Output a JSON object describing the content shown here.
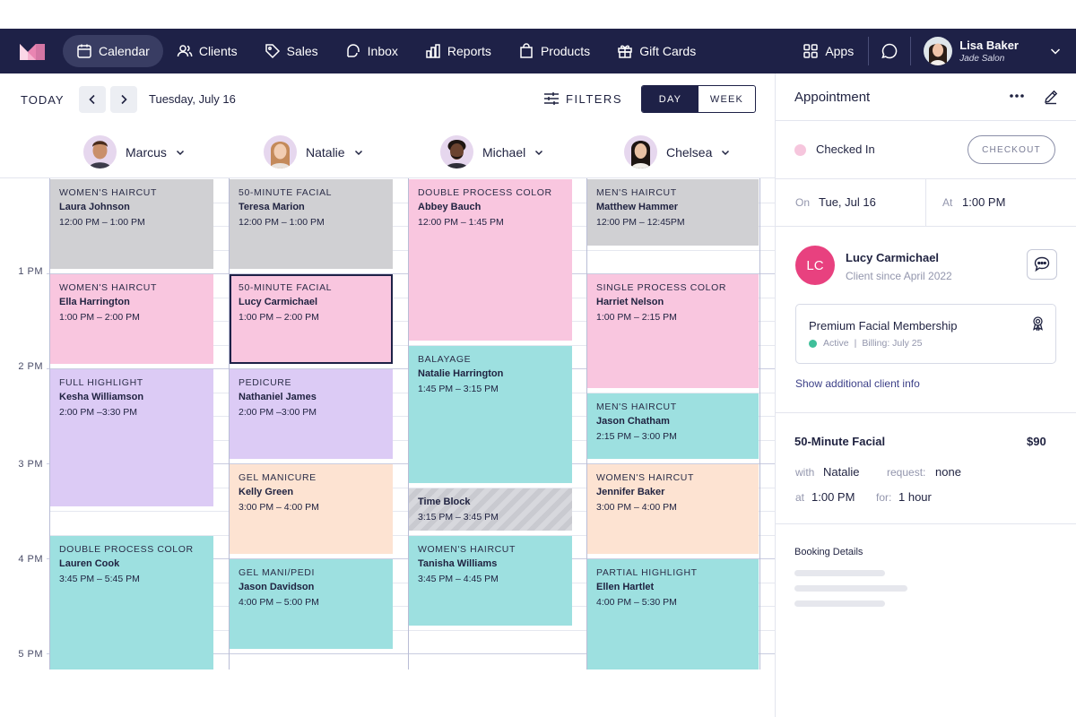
{
  "nav": {
    "items": [
      {
        "label": "Calendar",
        "icon": "calendar-icon",
        "active": true
      },
      {
        "label": "Clients",
        "icon": "clients-icon",
        "active": false
      },
      {
        "label": "Sales",
        "icon": "tag-icon",
        "active": false
      },
      {
        "label": "Inbox",
        "icon": "inbox-icon",
        "active": false
      },
      {
        "label": "Reports",
        "icon": "bar-chart-icon",
        "active": false
      },
      {
        "label": "Products",
        "icon": "shopping-bag-icon",
        "active": false
      },
      {
        "label": "Gift Cards",
        "icon": "gift-icon",
        "active": false
      }
    ],
    "apps_label": "Apps",
    "user_name": "Lisa Baker",
    "user_salon": "Jade Salon"
  },
  "toolbar": {
    "today_label": "TODAY",
    "date": "Tuesday, July 16",
    "filters_label": "FILTERS",
    "view_options": [
      "DAY",
      "WEEK"
    ],
    "active_view": "DAY"
  },
  "staff": [
    {
      "name": "Marcus"
    },
    {
      "name": "Natalie"
    },
    {
      "name": "Michael"
    },
    {
      "name": "Chelsea"
    }
  ],
  "hours": [
    "1 PM",
    "2 PM",
    "3 PM",
    "4 PM",
    "5 PM"
  ],
  "appointments": [
    {
      "staff": 0,
      "service": "Women's Haircut",
      "client": "Laura Johnson",
      "time": "12:00 PM – 1:00 PM",
      "start": 12.0,
      "end": 13.0,
      "color": "#d0d0d3"
    },
    {
      "staff": 0,
      "service": "Women's Haircut",
      "client": "Ella Harrington",
      "time": "1:00 PM – 2:00 PM",
      "start": 13.0,
      "end": 14.0,
      "color": "#f9c6df"
    },
    {
      "staff": 0,
      "service": "Full Highlight",
      "client": "Kesha Williamson",
      "time": "2:00 PM –3:30 PM",
      "start": 14.0,
      "end": 15.5,
      "color": "#dccbf5"
    },
    {
      "staff": 0,
      "service": "Double Process Color",
      "client": "Lauren Cook",
      "time": "3:45 PM – 5:45 PM",
      "start": 15.75,
      "end": 17.75,
      "color": "#9de0e0"
    },
    {
      "staff": 1,
      "service": "50-Minute Facial",
      "client": "Teresa Marion",
      "time": "12:00 PM – 1:00 PM",
      "start": 12.0,
      "end": 13.0,
      "color": "#d0d0d3"
    },
    {
      "staff": 1,
      "service": "50-Minute Facial",
      "client": "Lucy Carmichael",
      "time": "1:00 PM – 2:00 PM",
      "start": 13.0,
      "end": 14.0,
      "color": "#f9c6df",
      "selected": true
    },
    {
      "staff": 1,
      "service": "Pedicure",
      "client": "Nathaniel James",
      "time": "2:00 PM –3:00 PM",
      "start": 14.0,
      "end": 15.0,
      "color": "#dccbf5"
    },
    {
      "staff": 1,
      "service": "Gel Manicure",
      "client": "Kelly Green",
      "time": "3:00 PM – 4:00 PM",
      "start": 15.0,
      "end": 16.0,
      "color": "#fde3d2"
    },
    {
      "staff": 1,
      "service": "Gel Mani/Pedi",
      "client": "Jason Davidson",
      "time": "4:00 PM – 5:00 PM",
      "start": 16.0,
      "end": 17.0,
      "color": "#9de0e0"
    },
    {
      "staff": 2,
      "service": "Double Process Color",
      "client": "Abbey Bauch",
      "time": "12:00 PM – 1:45 PM",
      "start": 12.0,
      "end": 13.75,
      "color": "#f9c6df"
    },
    {
      "staff": 2,
      "service": "Balayage",
      "client": "Natalie Harrington",
      "time": "1:45 PM – 3:15 PM",
      "start": 13.75,
      "end": 15.25,
      "color": "#9de0e0"
    },
    {
      "staff": 2,
      "service": "",
      "client": "Time Block",
      "time": "3:15 PM – 3:45 PM",
      "start": 15.25,
      "end": 15.75,
      "color": "#d0d0d3",
      "pattern": true
    },
    {
      "staff": 2,
      "service": "Women's Haircut",
      "client": "Tanisha Williams",
      "time": "3:45 PM – 4:45 PM",
      "start": 15.75,
      "end": 16.75,
      "color": "#9de0e0"
    },
    {
      "staff": 3,
      "service": "Men's Haircut",
      "client": "Matthew Hammer",
      "time": "12:00 PM – 12:45PM",
      "start": 12.0,
      "end": 12.75,
      "color": "#d0d0d3"
    },
    {
      "staff": 3,
      "service": "Single Process Color",
      "client": "Harriet Nelson",
      "time": "1:00 PM – 2:15 PM",
      "start": 13.0,
      "end": 14.25,
      "color": "#f9c6df"
    },
    {
      "staff": 3,
      "service": "Men's Haircut",
      "client": "Jason Chatham",
      "time": "2:15 PM – 3:00 PM",
      "start": 14.25,
      "end": 15.0,
      "color": "#9de0e0"
    },
    {
      "staff": 3,
      "service": "Women's Haircut",
      "client": "Jennifer Baker",
      "time": "3:00 PM – 4:00 PM",
      "start": 15.0,
      "end": 16.0,
      "color": "#fde3d2"
    },
    {
      "staff": 3,
      "service": "Partial Highlight",
      "client": "Ellen Hartlet",
      "time": "4:00 PM – 5:30 PM",
      "start": 16.0,
      "end": 17.5,
      "color": "#9de0e0"
    }
  ],
  "panel": {
    "title": "Appointment",
    "status": "Checked In",
    "checkout_label": "CHECKOUT",
    "on_label": "On",
    "on_value": "Tue, Jul 16",
    "at_label": "At",
    "at_value": "1:00 PM",
    "client": {
      "initials": "LC",
      "name": "Lucy Carmichael",
      "since": "Client since April 2022",
      "membership": "Premium Facial Membership",
      "membership_status": "Active",
      "membership_billing": "Billing: July 25",
      "more_link": "Show additional client info"
    },
    "service": {
      "name": "50-Minute Facial",
      "price": "$90",
      "with_label": "with",
      "with_value": "Natalie",
      "request_label": "request:",
      "request_value": "none",
      "at_label": "at",
      "at_value": "1:00 PM",
      "for_label": "for:",
      "for_value": "1 hour"
    },
    "booking_title": "Booking Details"
  },
  "colors": {
    "nav_bg": "#1e2147",
    "nav_active": "#393d63",
    "accent": "#1e2147",
    "client_avatar": "#e8417f",
    "status_dot": "#f6c6dd",
    "active_dot": "#3fbf9a"
  }
}
